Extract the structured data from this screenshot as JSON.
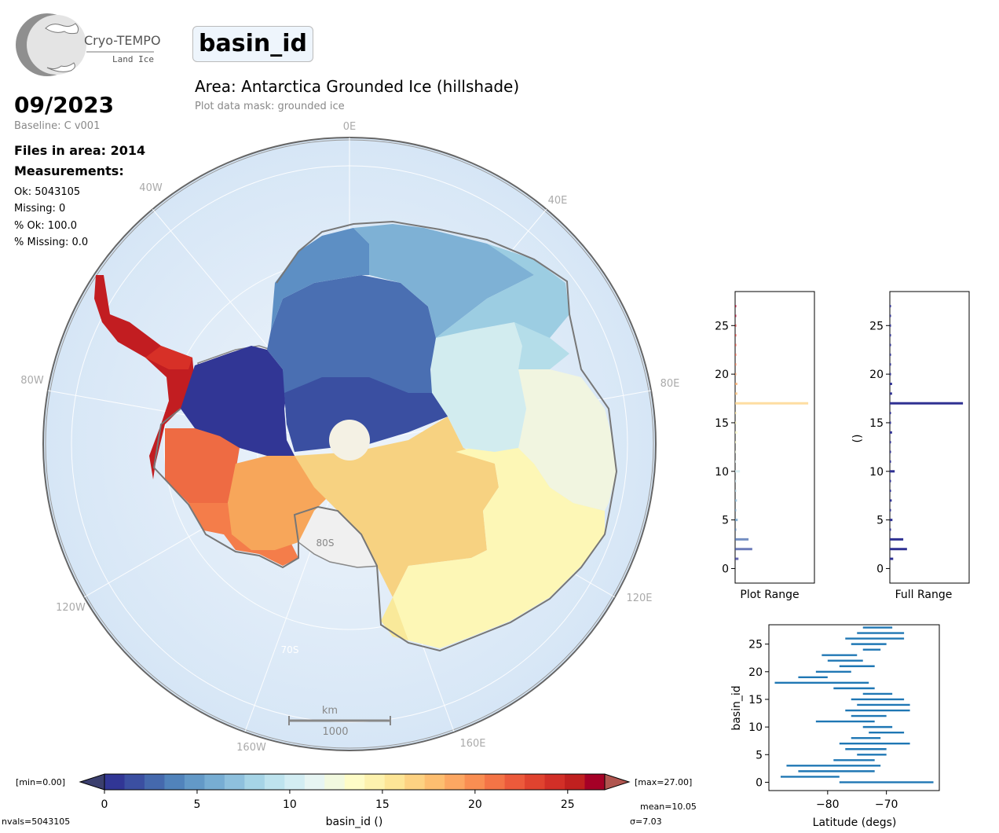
{
  "logo": {
    "name": "Cryo-TEMPO",
    "subtitle": "Land Ice"
  },
  "variable_name": "basin_id",
  "area_title": "Area: Antarctica Grounded Ice (hillshade)",
  "mask_note": "Plot data mask: grounded ice",
  "date": "09/2023",
  "baseline": "Baseline: C v001",
  "files_in_area": "Files in area: 2014",
  "measurements_heading": "Measurements:",
  "stats": {
    "ok": "Ok: 5043105",
    "missing": "Missing: 0",
    "pct_ok": "% Ok: 100.0",
    "pct_missing": "% Missing: 0.0"
  },
  "map": {
    "lon_labels": [
      "0E",
      "40E",
      "80E",
      "120E",
      "160E",
      "160W",
      "120W",
      "80W",
      "40W"
    ],
    "lat_labels": [
      "80S",
      "70S"
    ],
    "scalebar_unit": "km",
    "scalebar_value": "1000"
  },
  "colorbar": {
    "min_label": "[min=0.00]",
    "max_label": "[max=27.00]",
    "ticks": [
      "0",
      "5",
      "10",
      "15",
      "20",
      "25"
    ],
    "label": "basin_id ()",
    "range": [
      0,
      27
    ],
    "colors": [
      "#313695",
      "#3b4fa1",
      "#4569ad",
      "#5183bb",
      "#6399c7",
      "#77add3",
      "#8ec0dd",
      "#a6d4e6",
      "#bee3ee",
      "#d3edf3",
      "#e7f5f3",
      "#f2f9df",
      "#fefcc7",
      "#fdf2ae",
      "#fde596",
      "#fdd282",
      "#fdbe70",
      "#fca762",
      "#f98e52",
      "#f47446",
      "#ec5a3b",
      "#e0432f",
      "#d22f27",
      "#c0201f",
      "#a50026"
    ]
  },
  "footer": {
    "nvals": "nvals=5043105",
    "mean": "mean=10.05",
    "sigma": "σ=7.03"
  },
  "hist_plot_range": {
    "xlabel": "Plot Range",
    "yticks": [
      "0",
      "5",
      "10",
      "15",
      "20",
      "25"
    ]
  },
  "hist_full_range": {
    "xlabel": "Full Range",
    "ylabel": "()",
    "yticks": [
      "0",
      "5",
      "10",
      "15",
      "20",
      "25"
    ]
  },
  "chart_data": [
    {
      "type": "bar",
      "orientation": "horizontal",
      "xlabel": "Plot Range",
      "ylim": [
        -1.5,
        28.5
      ],
      "categories": [
        1,
        2,
        3,
        4,
        5,
        6,
        7,
        8,
        9,
        10,
        11,
        12,
        13,
        14,
        15,
        16,
        17,
        18,
        19,
        20,
        21,
        22,
        23,
        24,
        25,
        26,
        27
      ],
      "values": [
        0.045,
        0.23,
        0.18,
        0.012,
        0.035,
        0.015,
        0.025,
        0.005,
        0.005,
        0.065,
        0.005,
        0.015,
        0.015,
        0.03,
        0.005,
        0.005,
        0.98,
        0.03,
        0.03,
        0.015,
        0.012,
        0.012,
        0.005,
        0.005,
        0.005,
        0.005,
        0.005
      ]
    },
    {
      "type": "bar",
      "orientation": "horizontal",
      "xlabel": "Full Range",
      "ylabel": "()",
      "ylim": [
        -1.5,
        28.5
      ],
      "categories": [
        1,
        2,
        3,
        4,
        5,
        6,
        7,
        8,
        9,
        10,
        11,
        12,
        13,
        14,
        15,
        16,
        17,
        18,
        19,
        20,
        21,
        22,
        23,
        24,
        25,
        26,
        27
      ],
      "values": [
        0.045,
        0.23,
        0.18,
        0.012,
        0.035,
        0.015,
        0.025,
        0.005,
        0.005,
        0.065,
        0.005,
        0.015,
        0.015,
        0.03,
        0.005,
        0.005,
        0.98,
        0.03,
        0.03,
        0.015,
        0.012,
        0.012,
        0.005,
        0.005,
        0.005,
        0.005,
        0.005
      ]
    },
    {
      "type": "range",
      "orientation": "horizontal",
      "xlabel": "Latitude (degs)",
      "ylabel": "basin_id",
      "xlim": [
        -90,
        -61
      ],
      "ylim": [
        -1.5,
        28.5
      ],
      "xticks": [
        -80,
        -70
      ],
      "yticks": [
        0,
        5,
        10,
        15,
        20,
        25
      ],
      "ranges": [
        [
          -78,
          -62
        ],
        [
          -88,
          -78
        ],
        [
          -85,
          -72
        ],
        [
          -87,
          -71
        ],
        [
          -79,
          -72
        ],
        [
          -75,
          -70
        ],
        [
          -77,
          -70
        ],
        [
          -78,
          -66
        ],
        [
          -76,
          -71
        ],
        [
          -73,
          -67
        ],
        [
          -74,
          -69
        ],
        [
          -82,
          -72
        ],
        [
          -76,
          -70
        ],
        [
          -77,
          -66
        ],
        [
          -75,
          -66
        ],
        [
          -76,
          -67
        ],
        [
          -74,
          -69
        ],
        [
          -79,
          -72
        ],
        [
          -89,
          -73
        ],
        [
          -85,
          -80
        ],
        [
          -82,
          -76
        ],
        [
          -78,
          -72
        ],
        [
          -80,
          -74
        ],
        [
          -81,
          -75
        ],
        [
          -74,
          -71
        ],
        [
          -76,
          -70
        ],
        [
          -77,
          -67
        ],
        [
          -75,
          -67
        ],
        [
          -74,
          -69
        ]
      ]
    }
  ]
}
